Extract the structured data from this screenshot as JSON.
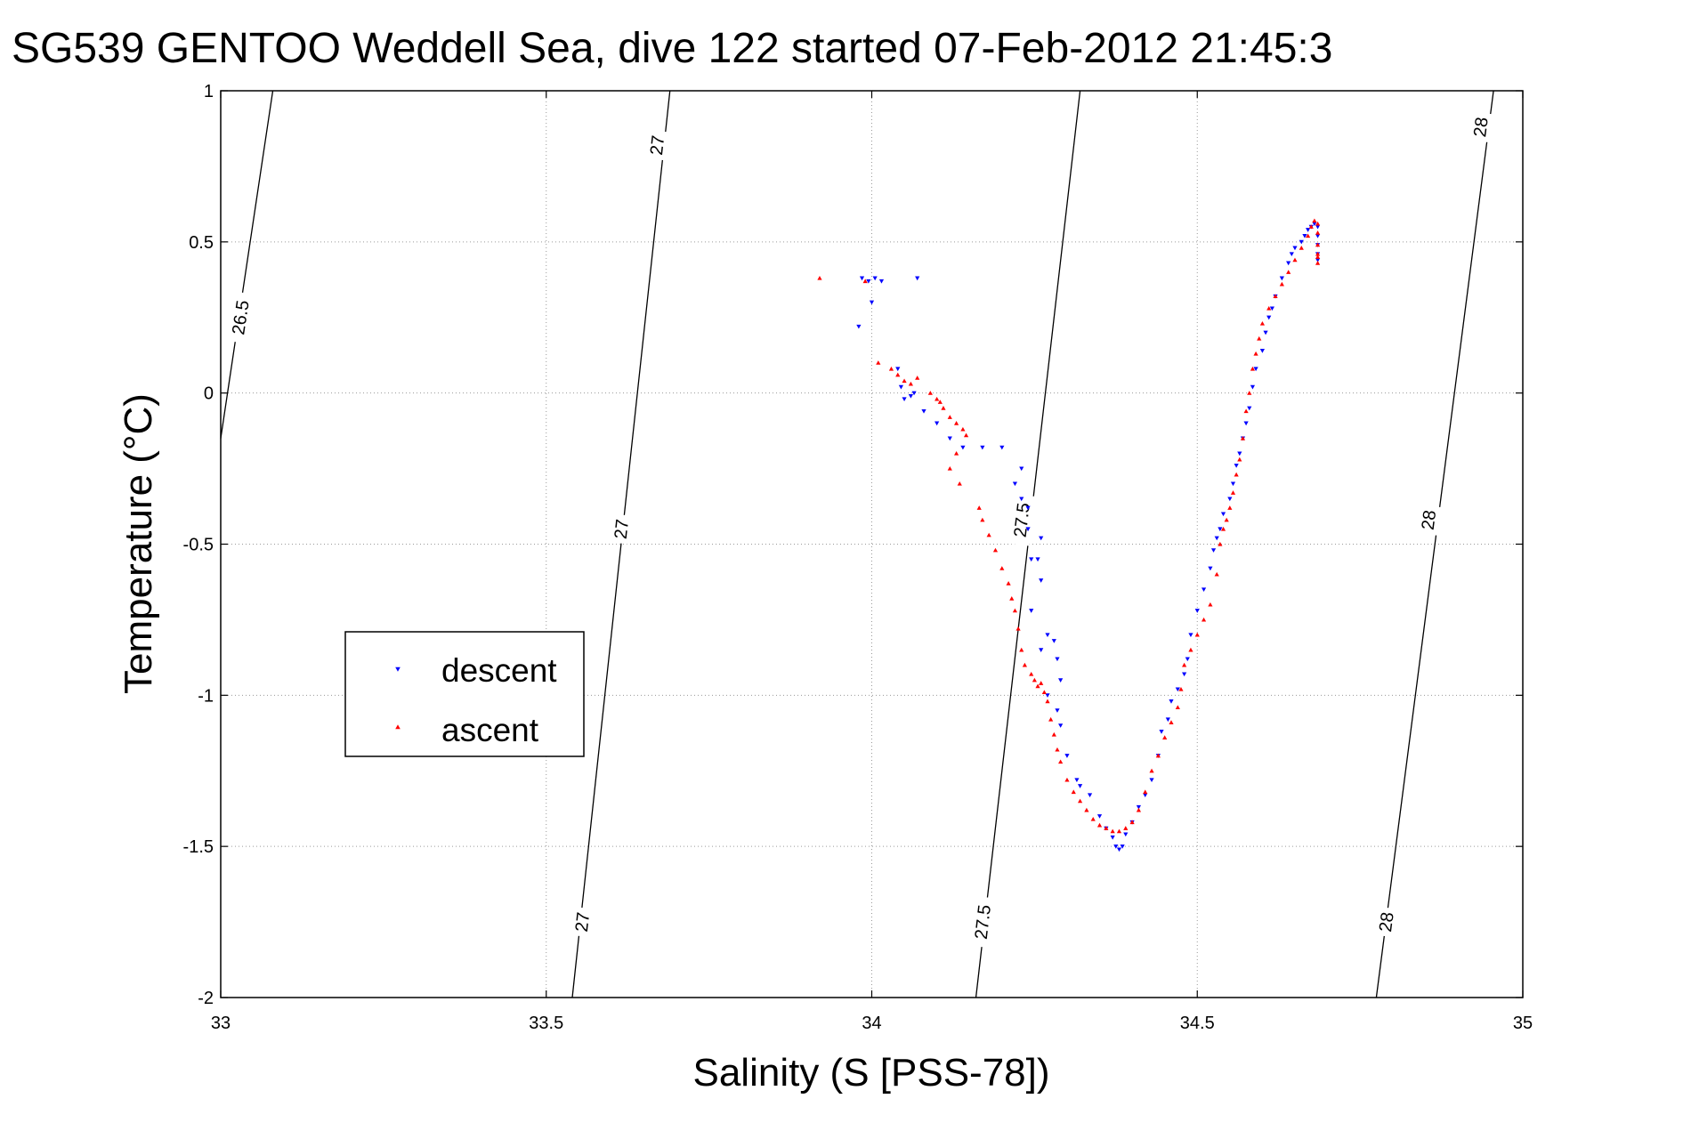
{
  "chart_data": {
    "type": "scatter",
    "title": "SG539 GENTOO Weddell Sea, dive 122 started 07-Feb-2012 21:45:3",
    "xlabel": "Salinity (S [PSS-78])",
    "ylabel": "Temperature (°C)",
    "xlim": [
      33,
      35
    ],
    "ylim": [
      -2,
      1
    ],
    "xticks": [
      33,
      33.5,
      34,
      34.5,
      35
    ],
    "yticks": [
      -2,
      -1.5,
      -1,
      -0.5,
      0,
      0.5,
      1
    ],
    "xtick_labels": [
      "33",
      "33.5",
      "34",
      "34.5",
      "35"
    ],
    "ytick_labels": [
      "-2",
      "-1.5",
      "-1",
      "-0.5",
      "0",
      "0.5",
      "1"
    ],
    "grid": true,
    "legend_position": "left, center",
    "isopycnals": [
      {
        "value": 26.5,
        "points": [
          [
            33.0,
            -0.15
          ],
          [
            33.08,
            1.0
          ]
        ],
        "labels": [
          {
            "text": "26.5",
            "at": [
              33.03,
              0.25
            ]
          }
        ]
      },
      {
        "value": 27.0,
        "points": [
          [
            33.54,
            -2.0
          ],
          [
            33.69,
            1.0
          ]
        ],
        "labels": [
          {
            "text": "27",
            "at": [
              33.555,
              -1.75
            ]
          },
          {
            "text": "27",
            "at": [
              33.615,
              -0.45
            ]
          },
          {
            "text": "27",
            "at": [
              33.67,
              0.82
            ]
          }
        ]
      },
      {
        "value": 27.5,
        "points": [
          [
            34.16,
            -2.0
          ],
          [
            34.32,
            1.0
          ]
        ],
        "labels": [
          {
            "text": "27.5",
            "at": [
              34.17,
              -1.75
            ]
          },
          {
            "text": "27.5",
            "at": [
              34.23,
              -0.42
            ]
          }
        ]
      },
      {
        "value": 28.0,
        "points": [
          [
            34.775,
            -2.0
          ],
          [
            34.955,
            1.0
          ]
        ],
        "labels": [
          {
            "text": "28",
            "at": [
              34.79,
              -1.75
            ]
          },
          {
            "text": "28",
            "at": [
              34.855,
              -0.42
            ]
          },
          {
            "text": "28",
            "at": [
              34.935,
              0.88
            ]
          }
        ]
      }
    ],
    "series": [
      {
        "name": "descent",
        "color": "#0000ff",
        "marker": "triangle-down",
        "points": [
          [
            33.985,
            0.38
          ],
          [
            33.995,
            0.37
          ],
          [
            34.005,
            0.38
          ],
          [
            34.015,
            0.37
          ],
          [
            34.07,
            0.38
          ],
          [
            33.98,
            0.22
          ],
          [
            34.0,
            0.3
          ],
          [
            34.04,
            0.08
          ],
          [
            34.045,
            0.02
          ],
          [
            34.05,
            -0.02
          ],
          [
            34.06,
            -0.01
          ],
          [
            34.065,
            0.0
          ],
          [
            34.08,
            -0.06
          ],
          [
            34.1,
            -0.1
          ],
          [
            34.12,
            -0.15
          ],
          [
            34.14,
            -0.18
          ],
          [
            34.17,
            -0.18
          ],
          [
            34.2,
            -0.18
          ],
          [
            34.22,
            -0.3
          ],
          [
            34.23,
            -0.25
          ],
          [
            34.23,
            -0.35
          ],
          [
            34.24,
            -0.38
          ],
          [
            34.24,
            -0.45
          ],
          [
            34.245,
            -0.55
          ],
          [
            34.255,
            -0.55
          ],
          [
            34.26,
            -0.48
          ],
          [
            34.26,
            -0.62
          ],
          [
            34.245,
            -0.72
          ],
          [
            34.26,
            -0.85
          ],
          [
            34.27,
            -0.8
          ],
          [
            34.28,
            -0.82
          ],
          [
            34.285,
            -0.88
          ],
          [
            34.29,
            -0.95
          ],
          [
            34.27,
            -1.0
          ],
          [
            34.285,
            -1.05
          ],
          [
            34.29,
            -1.1
          ],
          [
            34.3,
            -1.2
          ],
          [
            34.315,
            -1.28
          ],
          [
            34.32,
            -1.3
          ],
          [
            34.335,
            -1.33
          ],
          [
            34.35,
            -1.4
          ],
          [
            34.36,
            -1.44
          ],
          [
            34.37,
            -1.47
          ],
          [
            34.375,
            -1.5
          ],
          [
            34.38,
            -1.51
          ],
          [
            34.385,
            -1.5
          ],
          [
            34.39,
            -1.46
          ],
          [
            34.4,
            -1.42
          ],
          [
            34.41,
            -1.37
          ],
          [
            34.42,
            -1.33
          ],
          [
            34.43,
            -1.28
          ],
          [
            34.44,
            -1.2
          ],
          [
            34.445,
            -1.12
          ],
          [
            34.455,
            -1.08
          ],
          [
            34.46,
            -1.02
          ],
          [
            34.47,
            -0.98
          ],
          [
            34.48,
            -0.93
          ],
          [
            34.485,
            -0.88
          ],
          [
            34.49,
            -0.8
          ],
          [
            34.5,
            -0.72
          ],
          [
            34.51,
            -0.65
          ],
          [
            34.52,
            -0.58
          ],
          [
            34.525,
            -0.52
          ],
          [
            34.53,
            -0.48
          ],
          [
            34.535,
            -0.45
          ],
          [
            34.54,
            -0.4
          ],
          [
            34.55,
            -0.35
          ],
          [
            34.555,
            -0.3
          ],
          [
            34.56,
            -0.24
          ],
          [
            34.565,
            -0.2
          ],
          [
            34.57,
            -0.15
          ],
          [
            34.575,
            -0.1
          ],
          [
            34.58,
            -0.05
          ],
          [
            34.585,
            0.02
          ],
          [
            34.59,
            0.08
          ],
          [
            34.6,
            0.14
          ],
          [
            34.605,
            0.2
          ],
          [
            34.61,
            0.25
          ],
          [
            34.615,
            0.28
          ],
          [
            34.62,
            0.32
          ],
          [
            34.63,
            0.38
          ],
          [
            34.64,
            0.43
          ],
          [
            34.645,
            0.46
          ],
          [
            34.65,
            0.48
          ],
          [
            34.66,
            0.5
          ],
          [
            34.665,
            0.52
          ],
          [
            34.67,
            0.54
          ],
          [
            34.675,
            0.55
          ],
          [
            34.68,
            0.56
          ],
          [
            34.685,
            0.55
          ],
          [
            34.685,
            0.52
          ],
          [
            34.685,
            0.49
          ],
          [
            34.685,
            0.46
          ],
          [
            34.685,
            0.44
          ]
        ]
      },
      {
        "name": "ascent",
        "color": "#ff0000",
        "marker": "triangle-up",
        "points": [
          [
            33.92,
            0.38
          ],
          [
            33.99,
            0.37
          ],
          [
            34.01,
            0.1
          ],
          [
            34.03,
            0.08
          ],
          [
            34.04,
            0.06
          ],
          [
            34.05,
            0.04
          ],
          [
            34.06,
            0.03
          ],
          [
            34.07,
            0.05
          ],
          [
            34.09,
            0.0
          ],
          [
            34.1,
            -0.02
          ],
          [
            34.105,
            -0.03
          ],
          [
            34.11,
            -0.05
          ],
          [
            34.12,
            -0.08
          ],
          [
            34.13,
            -0.1
          ],
          [
            34.14,
            -0.12
          ],
          [
            34.145,
            -0.14
          ],
          [
            34.13,
            -0.2
          ],
          [
            34.12,
            -0.25
          ],
          [
            34.135,
            -0.3
          ],
          [
            34.165,
            -0.38
          ],
          [
            34.17,
            -0.42
          ],
          [
            34.18,
            -0.47
          ],
          [
            34.19,
            -0.52
          ],
          [
            34.2,
            -0.58
          ],
          [
            34.21,
            -0.63
          ],
          [
            34.215,
            -0.68
          ],
          [
            34.22,
            -0.72
          ],
          [
            34.225,
            -0.78
          ],
          [
            34.23,
            -0.85
          ],
          [
            34.235,
            -0.9
          ],
          [
            34.245,
            -0.93
          ],
          [
            34.25,
            -0.95
          ],
          [
            34.255,
            -0.97
          ],
          [
            34.26,
            -0.96
          ],
          [
            34.265,
            -0.99
          ],
          [
            34.27,
            -1.02
          ],
          [
            34.275,
            -1.08
          ],
          [
            34.28,
            -1.13
          ],
          [
            34.285,
            -1.18
          ],
          [
            34.29,
            -1.22
          ],
          [
            34.3,
            -1.28
          ],
          [
            34.31,
            -1.32
          ],
          [
            34.32,
            -1.35
          ],
          [
            34.33,
            -1.38
          ],
          [
            34.34,
            -1.41
          ],
          [
            34.35,
            -1.43
          ],
          [
            34.36,
            -1.44
          ],
          [
            34.37,
            -1.45
          ],
          [
            34.38,
            -1.45
          ],
          [
            34.39,
            -1.44
          ],
          [
            34.4,
            -1.42
          ],
          [
            34.41,
            -1.38
          ],
          [
            34.42,
            -1.32
          ],
          [
            34.43,
            -1.25
          ],
          [
            34.44,
            -1.2
          ],
          [
            34.45,
            -1.14
          ],
          [
            34.46,
            -1.09
          ],
          [
            34.47,
            -1.04
          ],
          [
            34.475,
            -0.98
          ],
          [
            34.48,
            -0.9
          ],
          [
            34.49,
            -0.85
          ],
          [
            34.5,
            -0.8
          ],
          [
            34.51,
            -0.75
          ],
          [
            34.52,
            -0.7
          ],
          [
            34.53,
            -0.6
          ],
          [
            34.535,
            -0.5
          ],
          [
            34.54,
            -0.45
          ],
          [
            34.545,
            -0.42
          ],
          [
            34.55,
            -0.38
          ],
          [
            34.555,
            -0.33
          ],
          [
            34.56,
            -0.27
          ],
          [
            34.565,
            -0.22
          ],
          [
            34.57,
            -0.15
          ],
          [
            34.575,
            -0.06
          ],
          [
            34.58,
            0.0
          ],
          [
            34.585,
            0.08
          ],
          [
            34.59,
            0.13
          ],
          [
            34.595,
            0.18
          ],
          [
            34.6,
            0.23
          ],
          [
            34.61,
            0.28
          ],
          [
            34.62,
            0.32
          ],
          [
            34.63,
            0.36
          ],
          [
            34.64,
            0.4
          ],
          [
            34.65,
            0.44
          ],
          [
            34.66,
            0.48
          ],
          [
            34.67,
            0.52
          ],
          [
            34.675,
            0.55
          ],
          [
            34.68,
            0.57
          ],
          [
            34.685,
            0.56
          ],
          [
            34.685,
            0.53
          ],
          [
            34.685,
            0.49
          ],
          [
            34.685,
            0.46
          ],
          [
            34.685,
            0.45
          ],
          [
            34.685,
            0.43
          ]
        ]
      }
    ]
  }
}
